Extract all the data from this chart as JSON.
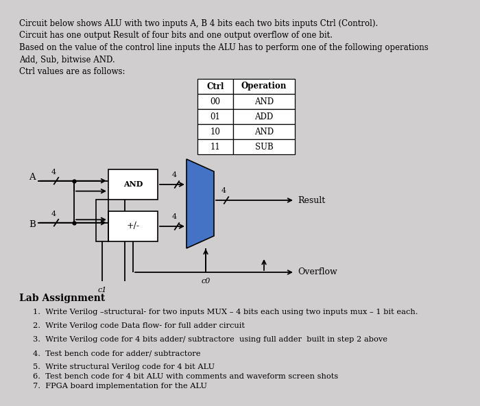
{
  "background_color": "#d0cece",
  "text_color": "#000000",
  "title_lines": [
    "Circuit below shows ALU with two inputs A, B 4 bits each two bits inputs Ctrl (Control).",
    "Circuit has one output Result of four bits and one output overflow of one bit.",
    "Based on the value of the control line inputs the ALU has to perform one of the following operations",
    "Add, Sub, bitwise AND.",
    "Ctrl values are as follows:"
  ],
  "table_headers": [
    "Ctrl",
    "Operation"
  ],
  "table_rows": [
    [
      "00",
      "AND"
    ],
    [
      "01",
      "ADD"
    ],
    [
      "10",
      "AND"
    ],
    [
      "11",
      "SUB"
    ]
  ],
  "lab_assignment": "Lab Assignment",
  "lab_items": [
    "Write Verilog –structural- for two inputs MUX – 4 bits each using two inputs mux – 1 bit each.",
    "Write Verilog code Data flow- for full adder circuit",
    "Write Verilog code for 4 bits adder/ subtractore  using full adder  built in step 2 above",
    "Test bench code for adder/ subtractore",
    "Write structural Verilog code for 4 bit ALU",
    "Test bench code for 4 bit ALU with comments and waveform screen shots",
    "FPGA board implementation for the ALU"
  ],
  "mux_color": "#4472c4",
  "box_color": "#ffffff",
  "line_color": "#000000"
}
